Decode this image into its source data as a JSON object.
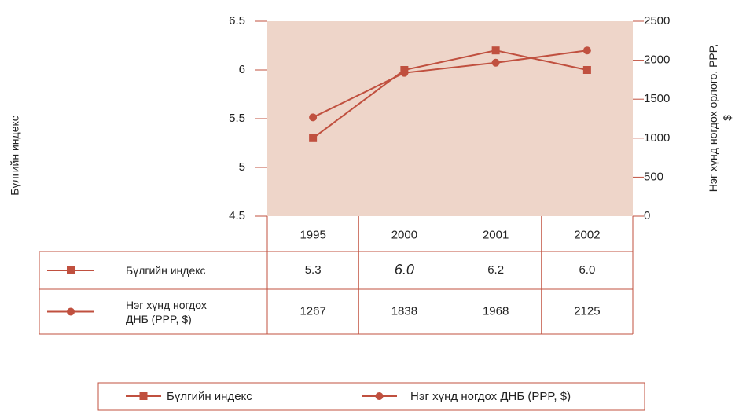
{
  "chart_data": {
    "type": "line",
    "categories": [
      "1995",
      "2000",
      "2001",
      "2002"
    ],
    "series": [
      {
        "name": "Бүлгийн индекс",
        "color": "#c0503f",
        "marker": "square",
        "values": [
          5.3,
          6.0,
          6.2,
          6.0
        ],
        "value_labels": [
          "5.3",
          "6.0",
          "6.2",
          "6.0"
        ]
      },
      {
        "name": "Нэг хүнд ногдох ДНБ (PPP, $)",
        "color": "#c0503f",
        "marker": "circle",
        "axis": "y2",
        "values": [
          1267,
          1838,
          1968,
          2125
        ]
      }
    ],
    "y_label": "Бүлгийн индекс",
    "y2_label": "Нэг хүнд ногдох орлого, PPP, $",
    "ylim": [
      4.5,
      6.5
    ],
    "yticks": [
      4.5,
      5,
      5.5,
      6,
      6.5
    ],
    "y2lim": [
      0,
      2500
    ],
    "y2ticks": [
      0,
      500,
      1000,
      1500,
      2000,
      2500
    ],
    "plot_background": "#eed5c9",
    "grid": false
  }
}
